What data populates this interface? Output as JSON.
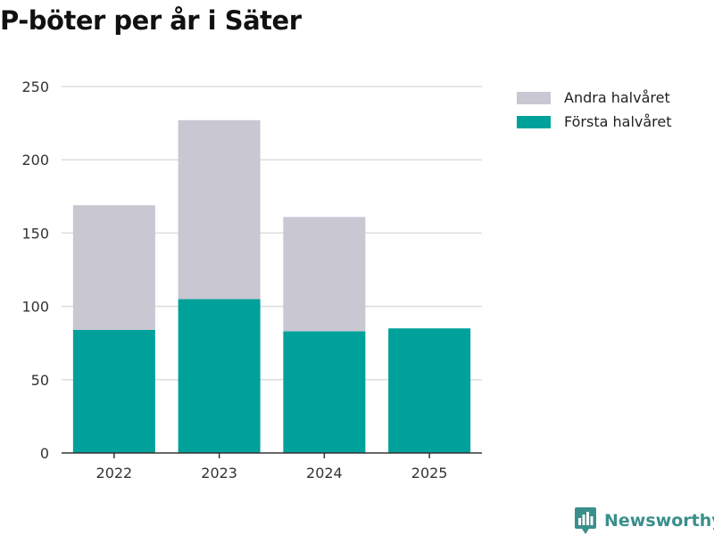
{
  "colors": {
    "first_half": "#00a19a",
    "second_half": "#c8c7d2",
    "grid": "#dddddd",
    "axis": "#333333",
    "brand": "#3a8f8c"
  },
  "chart_data": {
    "type": "bar",
    "stacked": true,
    "title": "P-böter per år i Säter",
    "xlabel": "",
    "ylabel": "",
    "categories": [
      "2022",
      "2023",
      "2024",
      "2025"
    ],
    "series": [
      {
        "name": "Första halvåret",
        "values": [
          84,
          105,
          83,
          85
        ]
      },
      {
        "name": "Andra halvåret",
        "values": [
          85,
          122,
          78,
          0
        ]
      }
    ],
    "ylim": [
      0,
      250
    ],
    "yticks": [
      0,
      50,
      100,
      150,
      200,
      250
    ],
    "grid": true,
    "legend": {
      "position": "top-right",
      "entries": [
        "Andra halvåret",
        "Första halvåret"
      ]
    }
  },
  "footer": {
    "brand_name": "Newsworthy",
    "brand_icon": "bar-chart-icon"
  }
}
